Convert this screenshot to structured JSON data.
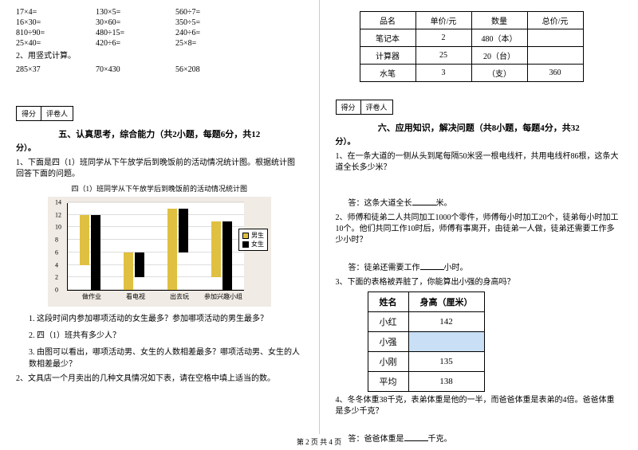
{
  "left": {
    "arith": [
      [
        "17×4=",
        "130×5=",
        "560÷7="
      ],
      [
        "16×30=",
        "30×60=",
        "350÷5="
      ],
      [
        "810÷90=",
        "480÷15=",
        "240÷6="
      ],
      [
        "25×40=",
        "420÷6=",
        "25×8="
      ]
    ],
    "vert_title": "2、用竖式计算。",
    "vert": [
      "285×37",
      "70×430",
      "56×208"
    ],
    "score1": "得分",
    "score2": "评卷人",
    "section5": "五、认真思考，综合能力（共2小题，每题6分，共12",
    "section5_tail": "分）。",
    "q1": "1、下面是四（1）班同学从下午放学后到晚饭前的活动情况统计图。根据统计图回答下面的问题。",
    "chart_title": "四（1）班同学从下午放学后到晚饭前的活动情况统计图",
    "chart": {
      "ymax": 14,
      "ytick": 2,
      "cats": [
        "做作业",
        "看电视",
        "出去玩",
        "参加兴趣小组"
      ],
      "boys": [
        8,
        6,
        13,
        9
      ],
      "girls": [
        12,
        4,
        7,
        11
      ],
      "boy_color": "#e0c040",
      "girl_color": "#000000",
      "boy_lbl": "男生",
      "girl_lbl": "女生"
    },
    "q1_1": "1. 这段时间内参加哪项活动的女生最多？参加哪项活动的男生最多？",
    "q1_2": "2. 四（1）班共有多少人？",
    "q1_3": "3. 由图可以看出，哪项活动男、女生的人数相差最多？哪项活动男、女生的人数相差最少？",
    "q2": "2、文具店一个月卖出的几种文具情况如下表，请在空格中填上适当的数。"
  },
  "right": {
    "table": {
      "headers": [
        "品名",
        "单价/元",
        "数量",
        "总价/元"
      ],
      "rows": [
        [
          "笔记本",
          "2",
          "480（本）",
          ""
        ],
        [
          "计算器",
          "25",
          "20（台）",
          ""
        ],
        [
          "水笔",
          "3",
          "（支）",
          "360"
        ]
      ]
    },
    "score1": "得分",
    "score2": "评卷人",
    "section6": "六、应用知识，解决问题（共8小题，每题4分，共32",
    "section6_tail": "分）。",
    "q1": "1、在一条大道的一侧从头到尾每隔50米竖一根电线杆，共用电线杆86根，这条大道全长多少米？",
    "a1_pre": "答：这条大道全长",
    "a1_suf": "米。",
    "q2": "2、师傅和徒弟二人共同加工1000个零件，师傅每小时加工20个，徒弟每小时加工10个。他们共同工作10时后，师傅有事离开，由徒弟一人做，徒弟还需要工作多少小时？",
    "a2_pre": "答：徒弟还需要工作",
    "a2_suf": "小时。",
    "q3": "3、下面的表格被弄脏了，你能算出小强的身高吗？",
    "height_tbl": {
      "h1": "姓名",
      "h2": "身高（厘米）",
      "rows": [
        [
          "小红",
          "142"
        ],
        [
          "小强",
          ""
        ],
        [
          "小刚",
          "135"
        ],
        [
          "平均",
          "138"
        ]
      ]
    },
    "q4": "4、冬冬体重38千克，表弟体重是他的一半，而爸爸体重是表弟的4倍。爸爸体重是多少千克？",
    "a4_pre": "答：爸爸体重是",
    "a4_suf": "千克。"
  },
  "footer": "第 2 页 共 4 页"
}
